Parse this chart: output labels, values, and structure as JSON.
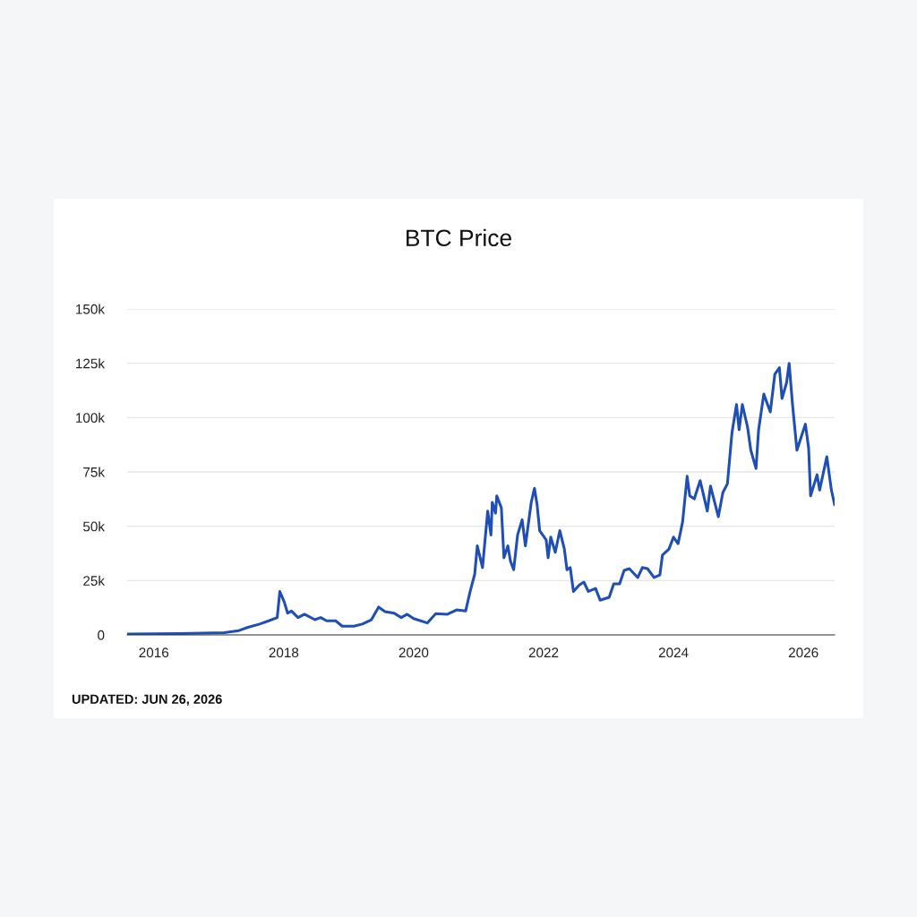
{
  "chart_data": {
    "type": "line",
    "title": "BTC Price",
    "x": [
      2015.59,
      2016.39,
      2017.08,
      2017.31,
      2017.45,
      2017.63,
      2017.77,
      2017.9,
      2017.94,
      2018.01,
      2018.06,
      2018.12,
      2018.22,
      2018.32,
      2018.48,
      2018.57,
      2018.66,
      2018.8,
      2018.9,
      2019.08,
      2019.21,
      2019.35,
      2019.46,
      2019.56,
      2019.7,
      2019.81,
      2019.9,
      2020.0,
      2020.21,
      2020.34,
      2020.52,
      2020.66,
      2020.8,
      2020.87,
      2020.94,
      2020.98,
      2021.06,
      2021.14,
      2021.19,
      2021.21,
      2021.26,
      2021.28,
      2021.35,
      2021.39,
      2021.45,
      2021.49,
      2021.54,
      2021.6,
      2021.67,
      2021.72,
      2021.81,
      2021.86,
      2021.9,
      2021.94,
      2022.04,
      2022.07,
      2022.11,
      2022.18,
      2022.25,
      2022.32,
      2022.36,
      2022.41,
      2022.46,
      2022.55,
      2022.62,
      2022.69,
      2022.8,
      2022.87,
      2023.01,
      2023.08,
      2023.17,
      2023.24,
      2023.32,
      2023.45,
      2023.52,
      2023.6,
      2023.7,
      2023.79,
      2023.83,
      2023.93,
      2024.0,
      2024.07,
      2024.14,
      2024.21,
      2024.25,
      2024.32,
      2024.41,
      2024.52,
      2024.57,
      2024.69,
      2024.76,
      2024.83,
      2024.9,
      2024.97,
      2025.01,
      2025.06,
      2025.14,
      2025.19,
      2025.27,
      2025.31,
      2025.39,
      2025.49,
      2025.56,
      2025.63,
      2025.67,
      2025.74,
      2025.78,
      2025.83,
      2025.9,
      2025.97,
      2026.03,
      2026.08,
      2026.11,
      2026.21,
      2026.25,
      2026.36,
      2026.43,
      2026.48
    ],
    "series": [
      {
        "color": "#1f4fb5",
        "values": [
          400,
          600,
          1000,
          2000,
          3500,
          5000,
          6500,
          8000,
          20000,
          15000,
          10000,
          11000,
          8000,
          9500,
          7000,
          8000,
          6500,
          6500,
          4000,
          4000,
          5000,
          7000,
          12800,
          10700,
          10000,
          8000,
          9500,
          7500,
          5500,
          9800,
          9500,
          11500,
          11000,
          20000,
          28000,
          41000,
          31000,
          57000,
          46000,
          61000,
          56000,
          64000,
          58500,
          35500,
          41000,
          34000,
          30000,
          46000,
          53000,
          41000,
          61000,
          67500,
          60000,
          48000,
          43700,
          35500,
          45000,
          38000,
          48000,
          39500,
          30000,
          31000,
          20000,
          23000,
          24300,
          20000,
          21400,
          16000,
          17300,
          23500,
          23500,
          29700,
          30500,
          26400,
          31000,
          30500,
          26400,
          27600,
          36700,
          39500,
          45000,
          42000,
          52000,
          73000,
          64000,
          62600,
          71000,
          57000,
          68500,
          54400,
          65500,
          69600,
          93000,
          106000,
          94400,
          106000,
          95600,
          85000,
          76600,
          94400,
          110800,
          102600,
          120000,
          123000,
          108800,
          116000,
          125000,
          106700,
          85000,
          91500,
          97000,
          86000,
          64000,
          73700,
          66700,
          82000,
          66700,
          60000
        ]
      }
    ],
    "xlim": [
      2015.59,
      2026.48
    ],
    "xticks": [
      2016,
      2018,
      2020,
      2022,
      2024,
      2026
    ],
    "ylim": [
      0,
      150000
    ],
    "yticks": [
      0,
      {
        "value": 25000,
        "label": "25k"
      },
      {
        "value": 50000,
        "label": "50k"
      },
      {
        "value": 75000,
        "label": "75k"
      },
      {
        "value": 100000,
        "label": "100k"
      },
      {
        "value": 125000,
        "label": "125k"
      },
      {
        "value": 150000,
        "label": "150k"
      }
    ],
    "grid": "y",
    "legend": false,
    "marker": "none",
    "line_style": "solid",
    "annotations": [
      "UPDATED: JUN 26, 2026"
    ]
  }
}
